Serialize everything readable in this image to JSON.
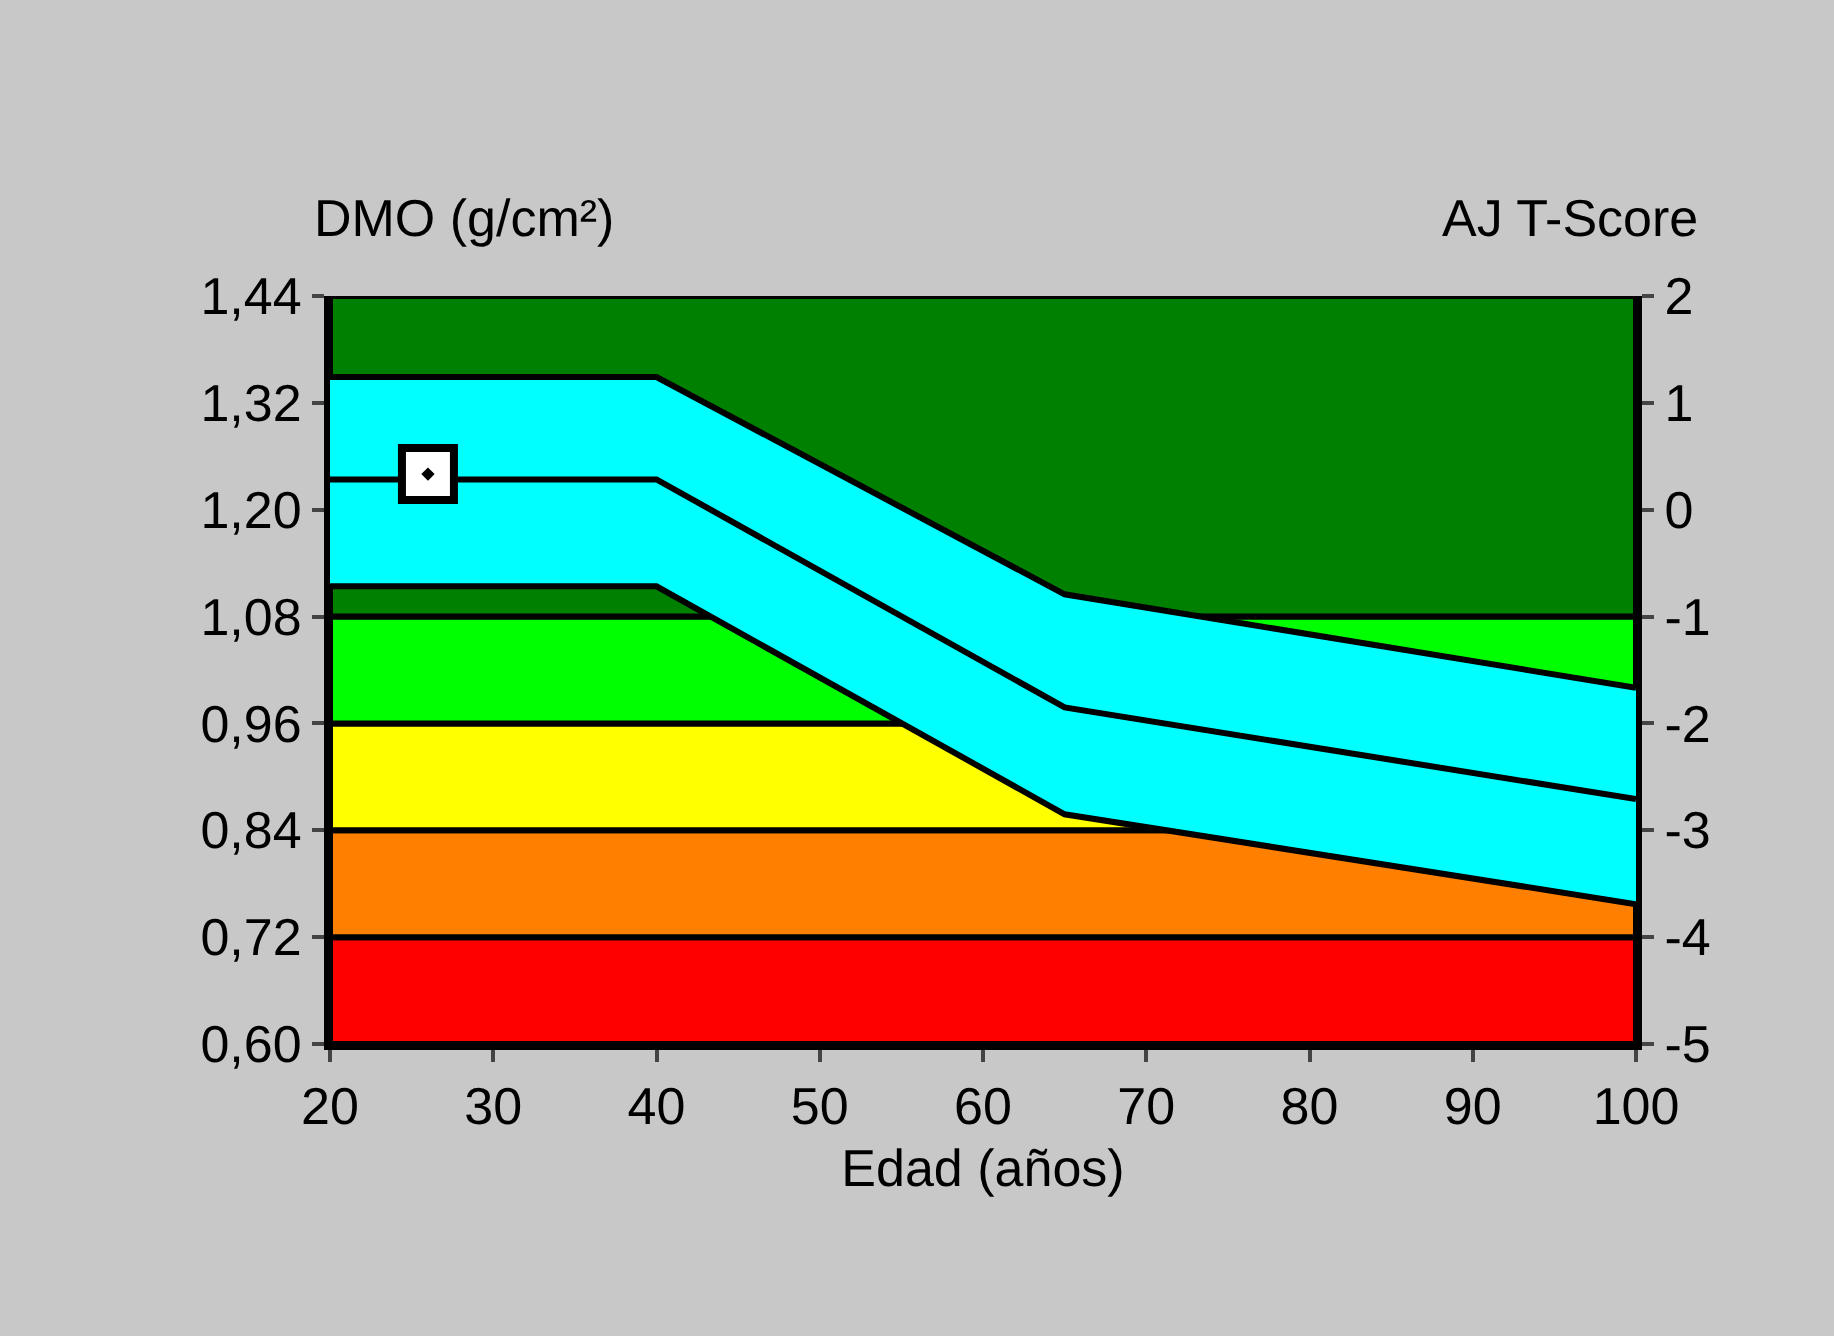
{
  "chart_data": {
    "type": "scatter",
    "xlabel": "Edad (años)",
    "ylabel": "DMO (g/cm²)",
    "y2label": "AJ T-Score",
    "x": [
      20,
      40,
      65,
      100
    ],
    "series": [
      {
        "type": "line",
        "marker": "none",
        "color": "#000000",
        "values": [
          1.234,
          1.234,
          0.978,
          0.875
        ],
        "lower": [
          1.114,
          1.114,
          0.858,
          0.757
        ],
        "upper": [
          1.349,
          1.349,
          1.105,
          1.0
        ]
      },
      {
        "type": "line",
        "marker": "none",
        "color": "#000000",
        "values": [
          1.349,
          1.349,
          1.105,
          1.0
        ]
      },
      {
        "type": "line",
        "marker": "none",
        "color": "#000000",
        "values": [
          1.114,
          1.114,
          0.858,
          0.757
        ]
      },
      {
        "color": "#000000",
        "x": [
          26
        ],
        "values": [
          1.24
        ]
      }
    ],
    "marker": "square",
    "xlim": [
      20,
      100
    ],
    "xticks": [
      20,
      30,
      40,
      50,
      60,
      70,
      80,
      90,
      100
    ],
    "ylim": [
      0.6,
      1.44
    ],
    "yticks": [
      {
        "value": 0.6,
        "label": "0,60"
      },
      {
        "value": 0.72,
        "label": "0,72"
      },
      {
        "value": 0.84,
        "label": "0,84"
      },
      {
        "value": 0.96,
        "label": "0,96"
      },
      {
        "value": 1.08,
        "label": "1,08"
      },
      {
        "value": 1.2,
        "label": "1,20"
      },
      {
        "value": 1.32,
        "label": "1,32"
      },
      {
        "value": 1.44,
        "label": "1,44"
      }
    ],
    "y2lim": [
      -5,
      2
    ],
    "y2ticks": [
      -5,
      -4,
      -3,
      -2,
      -1,
      0,
      1,
      2
    ],
    "bands": [
      {
        "axis": "y",
        "from": 0.6,
        "to": 0.72,
        "color": "#ff0000"
      },
      {
        "axis": "y",
        "from": 0.72,
        "to": 0.84,
        "color": "#ff8000"
      },
      {
        "axis": "y",
        "from": 0.84,
        "to": 0.96,
        "color": "#ffff00"
      },
      {
        "axis": "y",
        "from": 0.96,
        "to": 1.08,
        "color": "#00ff00"
      },
      {
        "axis": "y",
        "from": 1.08,
        "to": 1.44,
        "color": "#008000"
      }
    ],
    "grid": false
  }
}
